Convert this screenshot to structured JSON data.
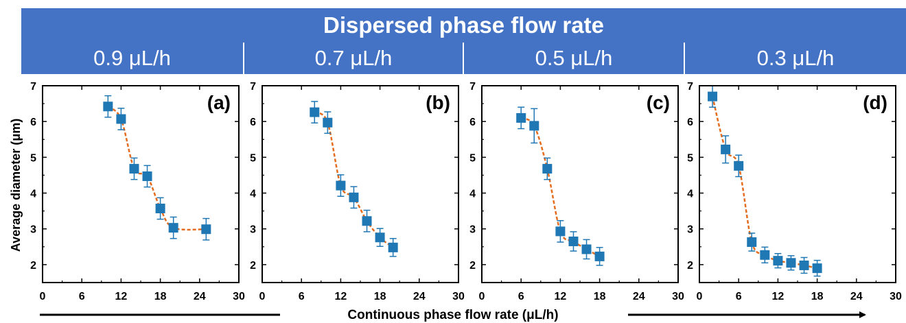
{
  "header": {
    "title": "Dispersed phase flow rate",
    "columns": [
      "0.9 μL/h",
      "0.7 μL/h",
      "0.5 μL/h",
      "0.3 μL/h"
    ]
  },
  "axes": {
    "ylabel": "Average diameter (μm)",
    "xlabel": "Continuous phase flow rate (μL/h)"
  },
  "colors": {
    "header": "#4472c4",
    "marker": "#1f77b4",
    "fit": "#e46c1e"
  },
  "chart_data": [
    {
      "type": "scatter",
      "label": "(a)",
      "xlim": [
        0,
        30
      ],
      "ylim": [
        1.5,
        7
      ],
      "xticks": [
        "0",
        "6",
        "12",
        "18",
        "24",
        "30"
      ],
      "yticks": [
        "2",
        "3",
        "4",
        "5",
        "6",
        "7"
      ],
      "x": [
        10,
        12,
        14,
        16,
        18,
        20,
        25
      ],
      "y": [
        6.42,
        6.07,
        4.68,
        4.47,
        3.57,
        3.03,
        2.99
      ],
      "error": [
        0.3,
        0.3,
        0.3,
        0.3,
        0.3,
        0.3,
        0.3
      ],
      "fit": "dashed"
    },
    {
      "type": "scatter",
      "label": "(b)",
      "xlim": [
        0,
        30
      ],
      "ylim": [
        1.5,
        7
      ],
      "xticks": [
        "0",
        "6",
        "12",
        "18",
        "24",
        "30"
      ],
      "yticks": [
        "2",
        "3",
        "4",
        "5",
        "6",
        "7"
      ],
      "x": [
        8,
        10,
        12,
        14,
        16,
        18,
        20
      ],
      "y": [
        6.26,
        5.97,
        4.21,
        3.88,
        3.22,
        2.76,
        2.48
      ],
      "error": [
        0.3,
        0.3,
        0.3,
        0.3,
        0.3,
        0.25,
        0.25
      ],
      "fit": "dashed"
    },
    {
      "type": "scatter",
      "label": "(c)",
      "xlim": [
        0,
        30
      ],
      "ylim": [
        1.5,
        7
      ],
      "xticks": [
        "0",
        "6",
        "12",
        "18",
        "24",
        "30"
      ],
      "yticks": [
        "2",
        "3",
        "4",
        "5",
        "6",
        "7"
      ],
      "x": [
        6,
        8,
        10,
        12,
        14,
        16,
        18
      ],
      "y": [
        6.1,
        5.88,
        4.68,
        2.93,
        2.65,
        2.43,
        2.23
      ],
      "error": [
        0.3,
        0.48,
        0.3,
        0.3,
        0.27,
        0.27,
        0.25
      ],
      "fit": "dashed"
    },
    {
      "type": "scatter",
      "label": "(d)",
      "xlim": [
        0,
        30
      ],
      "ylim": [
        1.5,
        7
      ],
      "xticks": [
        "0",
        "6",
        "12",
        "18",
        "24",
        "30"
      ],
      "yticks": [
        "2",
        "3",
        "4",
        "5",
        "6",
        "7"
      ],
      "x": [
        2,
        4,
        6,
        8,
        10,
        12,
        14,
        16,
        18
      ],
      "y": [
        6.7,
        5.22,
        4.76,
        2.63,
        2.27,
        2.11,
        2.05,
        1.98,
        1.9
      ],
      "error": [
        0.3,
        0.38,
        0.3,
        0.25,
        0.22,
        0.2,
        0.2,
        0.22,
        0.22
      ],
      "fit": "dashed"
    }
  ]
}
